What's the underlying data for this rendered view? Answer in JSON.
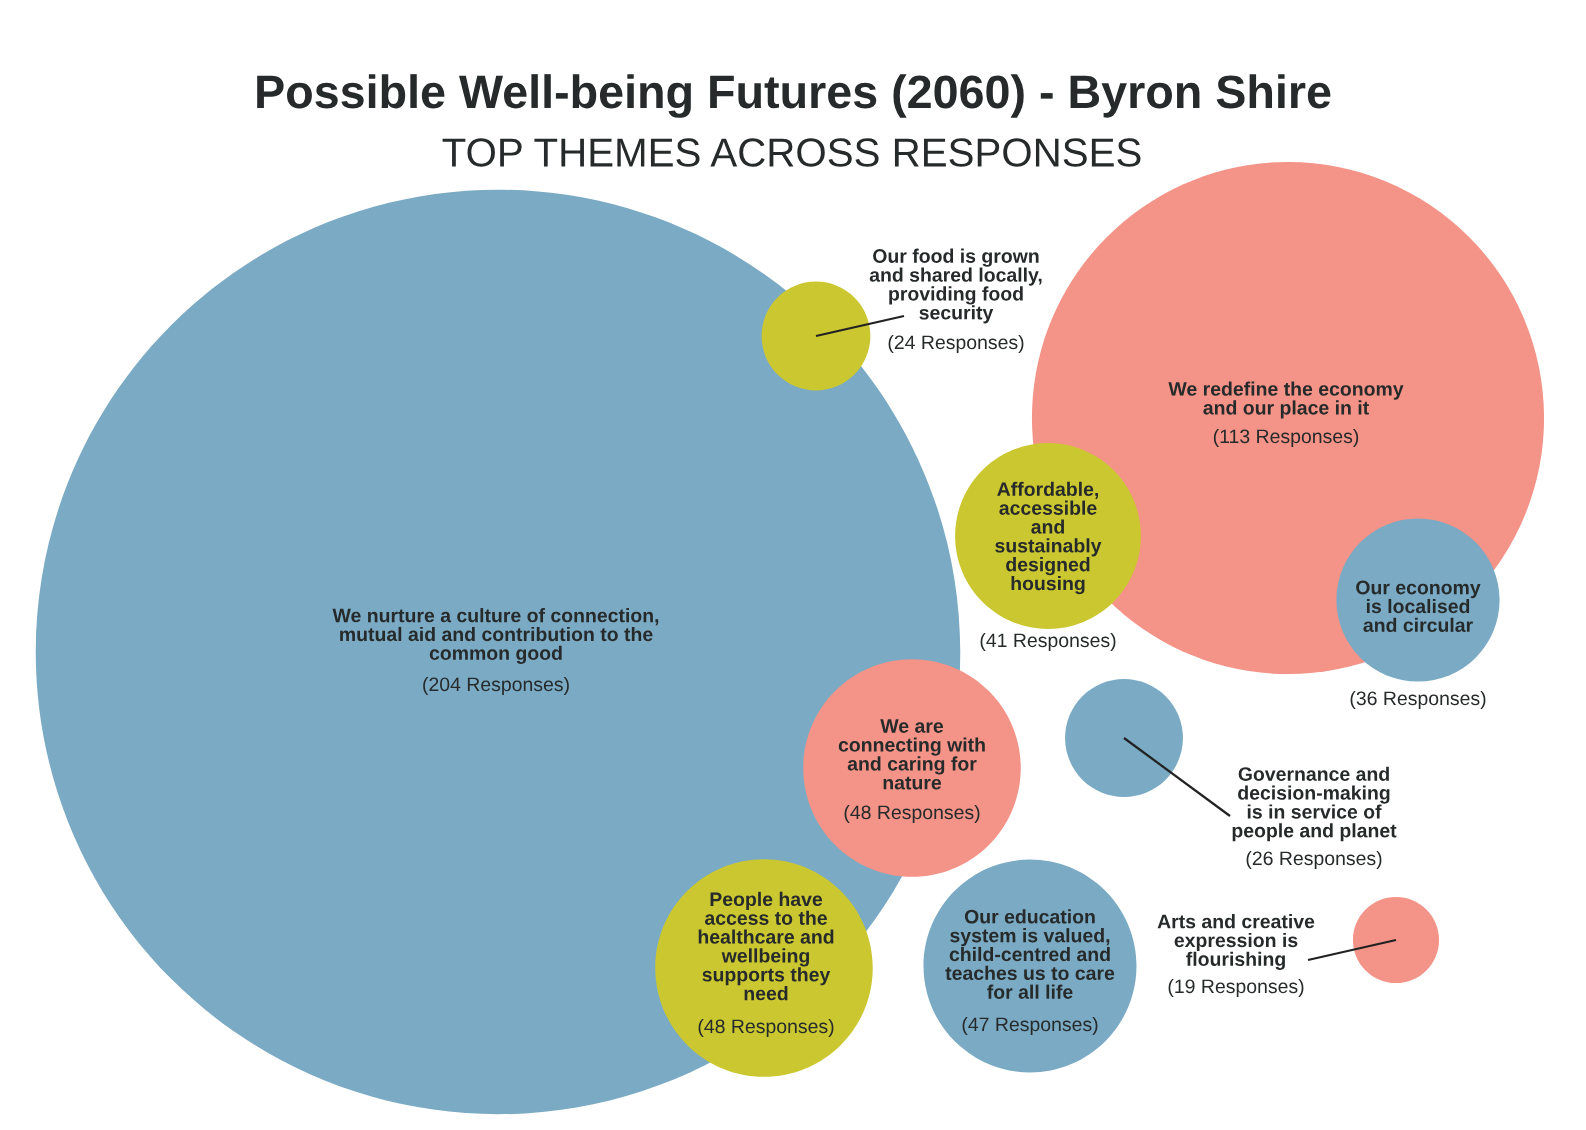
{
  "chart_data": {
    "type": "other",
    "title": "Possible Well-being Futures (2060) - Byron Shire",
    "subtitle": "TOP THEMES ACROSS RESPONSES",
    "categories": [
      "We nurture a culture of connection,\nmutual aid and contribution to the\ncommon good",
      "We redefine the economy\nand our place in it",
      "We are\nconnecting with\nand caring for\nnature",
      "People have\naccess to the\nhealthcare and\nwellbeing\nsupports they\nneed",
      "Our education\nsystem is valued,\nchild-centred and\nteaches us to care\nfor all life",
      "Affordable,\naccessible\nand\nsustainably\ndesigned\nhousing",
      "Our economy\nis localised\nand circular",
      "Governance and\ndecision-making\nis in service of\npeople and planet",
      "Our food is grown\nand shared locally,\nproviding food\nsecurity",
      "Arts and creative\nexpression is\nflourishing"
    ],
    "values": [
      204,
      113,
      48,
      48,
      47,
      41,
      36,
      26,
      24,
      19
    ],
    "value_labels": [
      "(204 Responses)",
      "(113 Responses)",
      "(48 Responses)",
      "(48 Responses)",
      "(47 Responses)",
      "(41 Responses)",
      "(36 Responses)",
      "(26 Responses)",
      "(24 Responses)",
      "(19 Responses)"
    ],
    "colors": [
      "#7aaac4",
      "#f49387",
      "#f49387",
      "#cbc730",
      "#7aaac4",
      "#cbc730",
      "#7aaac4",
      "#7aaac4",
      "#cbc730",
      "#f49387"
    ]
  }
}
